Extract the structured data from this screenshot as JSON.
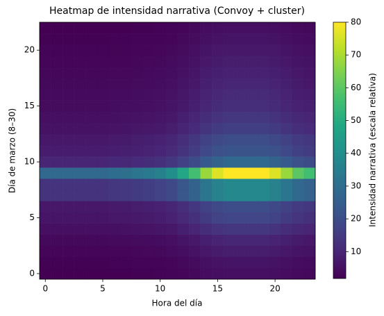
{
  "chart_data": {
    "type": "heatmap",
    "title": "Heatmap de intensidad narrativa (Convoy + cluster)",
    "xlabel": "Hora del día",
    "ylabel": "Día de marzo (8–30)",
    "x": [
      0,
      1,
      2,
      3,
      4,
      5,
      6,
      7,
      8,
      9,
      10,
      11,
      12,
      13,
      14,
      15,
      16,
      17,
      18,
      19,
      20,
      21,
      22,
      23
    ],
    "y": [
      0,
      1,
      2,
      3,
      4,
      5,
      6,
      7,
      8,
      9,
      10,
      11,
      12,
      13,
      14,
      15,
      16,
      17,
      18,
      19,
      20,
      21,
      22
    ],
    "xlim": [
      -0.5,
      23.5
    ],
    "xticks": [
      0,
      5,
      10,
      15,
      20
    ],
    "ylim": [
      -0.5,
      22.5
    ],
    "yticks": [
      0,
      5,
      10,
      15,
      20
    ],
    "colormap": "viridis",
    "colorbar": {
      "label": "Intensidad narrativa (escala relativa)",
      "lim": [
        1.8,
        80
      ],
      "ticks": [
        10,
        20,
        30,
        40,
        50,
        60,
        70,
        80
      ]
    },
    "z": [
      [
        1.8,
        1.8,
        1.8,
        1.8,
        1.8,
        1.8,
        1.9,
        1.9,
        2,
        2.1,
        2.3,
        2.5,
        3,
        3.5,
        4.3,
        4.8,
        5,
        5,
        5,
        5,
        4.8,
        4.3,
        3.8,
        3.5
      ],
      [
        2.1,
        2.1,
        2.1,
        2.1,
        2.1,
        2.1,
        2.2,
        2.3,
        2.4,
        2.5,
        2.7,
        3,
        3.6,
        4.2,
        5.1,
        5.7,
        6,
        6,
        6,
        6,
        5.7,
        5.1,
        4.5,
        4.2
      ],
      [
        2.8,
        2.8,
        2.8,
        2.8,
        2.8,
        2.8,
        3,
        3,
        3.2,
        3.4,
        3.6,
        4,
        4.8,
        5.6,
        6.8,
        7.6,
        8,
        8,
        8,
        8,
        7.6,
        6.8,
        6,
        5.6
      ],
      [
        3.5,
        3.5,
        3.5,
        3.5,
        3.5,
        3.5,
        3.7,
        3.8,
        4,
        4.2,
        4.5,
        5,
        6,
        7,
        8.5,
        9.5,
        10,
        10,
        10,
        10,
        9.5,
        8.5,
        7.5,
        7
      ],
      [
        4.9,
        4.9,
        4.9,
        4.9,
        4.9,
        4.9,
        5.2,
        5.3,
        5.6,
        5.9,
        6.3,
        7,
        8.4,
        9.8,
        11.9,
        13.3,
        14,
        14,
        14,
        14,
        13.3,
        11.9,
        10.5,
        9.8
      ],
      [
        6.3,
        6.3,
        6.3,
        6.3,
        6.3,
        6.3,
        6.7,
        6.8,
        7.2,
        7.6,
        8.1,
        9,
        10.8,
        12.6,
        15.3,
        17.1,
        18,
        18,
        18,
        18,
        17.1,
        15.3,
        13.5,
        12.6
      ],
      [
        7,
        7,
        7,
        7,
        7,
        7,
        7.4,
        7.6,
        8,
        8.4,
        9,
        10,
        12,
        14,
        17,
        19,
        20,
        20,
        20,
        20,
        19,
        17,
        15,
        14
      ],
      [
        13.3,
        13.3,
        13.3,
        13.3,
        13.3,
        13.3,
        14.1,
        14.4,
        15.2,
        16,
        17.1,
        19,
        22.8,
        26.6,
        32.3,
        36.1,
        38,
        38,
        38,
        38,
        36.1,
        32.3,
        28.5,
        26.6
      ],
      [
        13.3,
        13.3,
        13.3,
        13.3,
        13.3,
        13.3,
        14.1,
        14.4,
        15.2,
        16,
        17.1,
        19,
        22.8,
        26.6,
        32.3,
        36.1,
        38,
        38,
        38,
        38,
        36.1,
        32.3,
        28.5,
        26.6
      ],
      [
        28,
        28,
        28,
        28,
        28,
        28,
        29.6,
        30.4,
        32,
        33.6,
        36,
        40,
        48,
        56,
        68,
        76,
        80,
        80,
        80,
        80,
        76,
        68,
        60,
        56
      ],
      [
        9.8,
        9.8,
        9.8,
        9.8,
        9.8,
        9.8,
        10.4,
        10.6,
        11.2,
        11.8,
        12.6,
        14,
        16.8,
        19.6,
        23.8,
        26.6,
        28,
        28,
        28,
        28,
        26.6,
        23.8,
        21,
        19.6
      ],
      [
        7.7,
        7.7,
        7.7,
        7.7,
        7.7,
        7.7,
        8.1,
        8.4,
        8.8,
        9.2,
        9.9,
        11,
        13.2,
        15.4,
        18.7,
        20.9,
        22,
        22,
        22,
        22,
        20.9,
        18.7,
        16.5,
        15.4
      ],
      [
        7,
        7,
        7,
        7,
        7,
        7,
        7.4,
        7.6,
        8,
        8.4,
        9,
        10,
        12,
        14,
        17,
        19,
        20,
        20,
        20,
        20,
        19,
        17,
        15,
        14
      ],
      [
        5.6,
        5.6,
        5.6,
        5.6,
        5.6,
        5.6,
        5.9,
        6.1,
        6.4,
        6.7,
        7.2,
        8,
        9.6,
        11.2,
        13.6,
        15.2,
        16,
        16,
        16,
        16,
        15.2,
        13.6,
        12,
        11.2
      ],
      [
        4.9,
        4.9,
        4.9,
        4.9,
        4.9,
        4.9,
        5.2,
        5.3,
        5.6,
        5.9,
        6.3,
        7,
        8.4,
        9.8,
        11.9,
        13.3,
        14,
        14,
        14,
        14,
        13.3,
        11.9,
        10.5,
        9.8
      ],
      [
        4.2,
        4.2,
        4.2,
        4.2,
        4.2,
        4.2,
        4.4,
        4.6,
        4.8,
        5,
        5.4,
        6,
        7.2,
        8.4,
        10.2,
        11.4,
        12,
        12,
        12,
        12,
        11.4,
        10.2,
        9,
        8.4
      ],
      [
        3.9,
        3.9,
        3.9,
        3.9,
        3.9,
        3.9,
        4.1,
        4.2,
        4.4,
        4.6,
        5,
        5.5,
        6.6,
        7.7,
        9.4,
        10.5,
        11,
        11,
        11,
        11,
        10.5,
        9.4,
        8.3,
        7.7
      ],
      [
        3.5,
        3.5,
        3.5,
        3.5,
        3.5,
        3.5,
        3.7,
        3.8,
        4,
        4.2,
        4.5,
        5,
        6,
        7,
        8.5,
        9.5,
        10,
        10,
        10,
        10,
        9.5,
        8.5,
        7.5,
        7
      ],
      [
        3.2,
        3.2,
        3.2,
        3.2,
        3.2,
        3.2,
        3.3,
        3.4,
        3.6,
        3.8,
        4.1,
        4.5,
        5.4,
        6.3,
        7.7,
        8.6,
        9,
        9,
        9,
        9,
        8.6,
        7.7,
        6.8,
        6.3
      ],
      [
        2.8,
        2.8,
        2.8,
        2.8,
        2.8,
        2.8,
        3,
        3,
        3.2,
        3.4,
        3.6,
        4,
        4.8,
        5.6,
        6.8,
        7.6,
        8,
        8,
        8,
        8,
        7.6,
        6.8,
        6,
        5.6
      ],
      [
        2.5,
        2.5,
        2.5,
        2.5,
        2.5,
        2.5,
        2.6,
        2.7,
        2.8,
        2.9,
        3.2,
        3.5,
        4.2,
        4.9,
        6,
        6.7,
        7,
        7,
        7,
        7,
        6.7,
        6,
        5.3,
        4.9
      ],
      [
        2.1,
        2.1,
        2.1,
        2.1,
        2.1,
        2.1,
        2.2,
        2.3,
        2.4,
        2.5,
        2.7,
        3,
        3.6,
        4.2,
        5.1,
        5.7,
        6,
        6,
        6,
        6,
        5.7,
        5.1,
        4.5,
        4.2
      ],
      [
        1.8,
        1.8,
        1.8,
        1.8,
        1.8,
        1.8,
        1.9,
        1.9,
        2,
        2.1,
        2.3,
        2.5,
        3,
        3.5,
        4.3,
        4.8,
        5,
        5,
        5,
        5,
        4.8,
        4.3,
        3.8,
        3.5
      ]
    ]
  }
}
